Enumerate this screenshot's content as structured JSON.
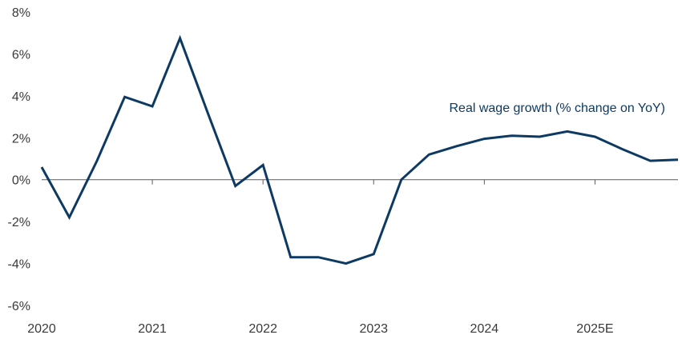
{
  "chart_data": {
    "type": "line",
    "title": "",
    "xlabel": "",
    "ylabel": "",
    "ylim": [
      -6,
      8
    ],
    "yticks": [
      8,
      6,
      4,
      2,
      0,
      -2,
      -4,
      -6
    ],
    "ytick_labels": [
      "8%",
      "6%",
      "4%",
      "2%",
      "0%",
      "-2%",
      "-4%",
      "-6%"
    ],
    "xticks": [
      2020,
      2021,
      2022,
      2023,
      2024,
      2025
    ],
    "xtick_labels": [
      "2020",
      "2021",
      "2022",
      "2023",
      "2024",
      "2025E"
    ],
    "xlim": [
      2020,
      2025.75
    ],
    "zero_line": true,
    "grid": false,
    "series": [
      {
        "name": "Real wage growth (% change on YoY)",
        "color": "#0d3a63",
        "x": [
          2020.0,
          2020.25,
          2020.5,
          2020.75,
          2021.0,
          2021.25,
          2021.5,
          2021.75,
          2022.0,
          2022.25,
          2022.5,
          2022.75,
          2023.0,
          2023.25,
          2023.5,
          2023.75,
          2024.0,
          2024.25,
          2024.5,
          2024.75,
          2025.0,
          2025.25,
          2025.5,
          2025.75
        ],
        "values": [
          0.6,
          -1.8,
          0.9,
          3.95,
          3.5,
          6.75,
          3.2,
          -0.3,
          0.7,
          -3.7,
          -3.7,
          -4.0,
          -3.55,
          0.0,
          1.2,
          1.6,
          1.95,
          2.1,
          2.05,
          2.3,
          2.05,
          1.45,
          0.9,
          0.95
        ]
      }
    ]
  }
}
